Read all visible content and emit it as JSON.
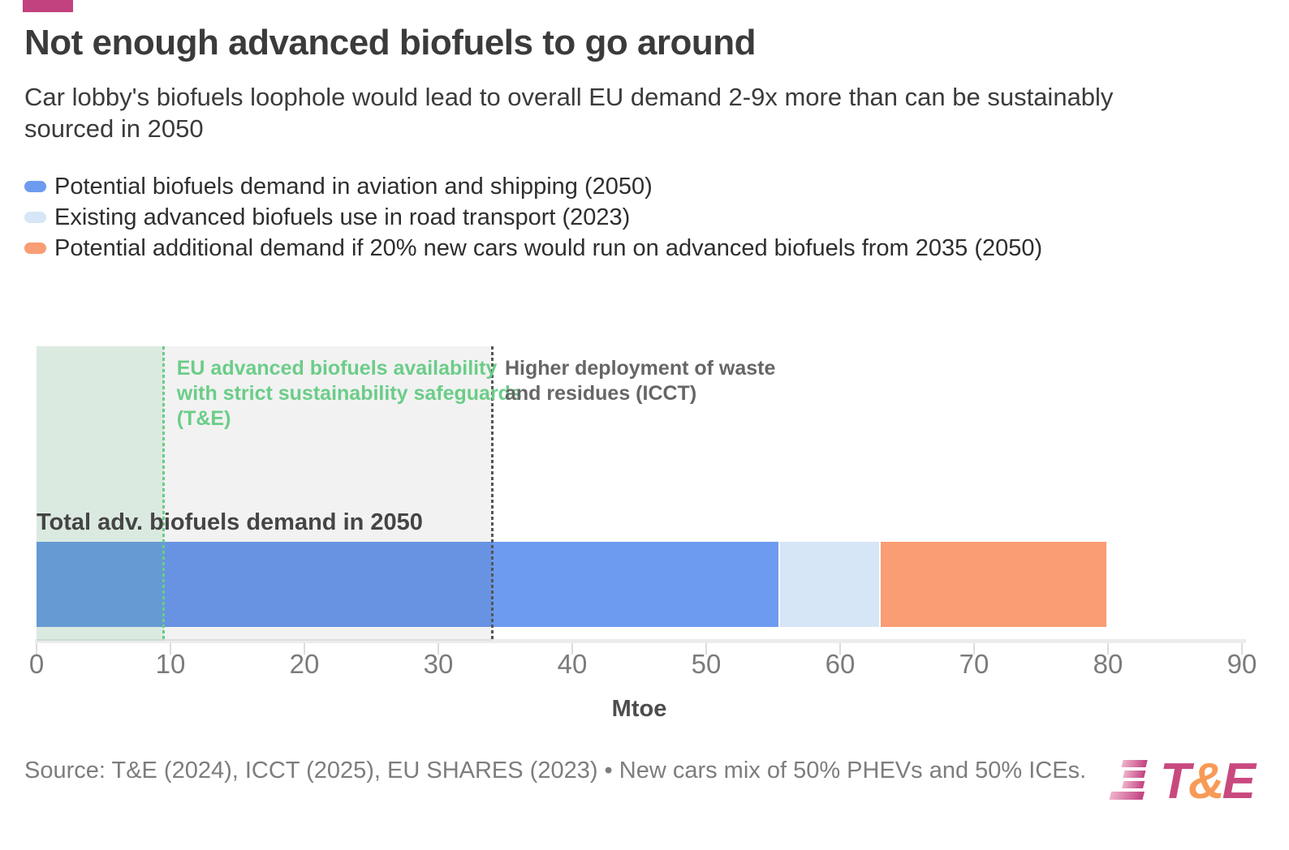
{
  "brand": {
    "accent_color": "#c2417f",
    "logo_pink": "#c9497f",
    "logo_orange": "#f89a57"
  },
  "header": {
    "title": "Not enough advanced biofuels to go around",
    "subtitle": "Car lobby's biofuels loophole would lead to overall EU demand 2-9x more than can be sustainably sourced in 2050"
  },
  "legend": {
    "items": [
      {
        "label": "Potential biofuels demand in aviation and shipping (2050)",
        "color": "#6d9bef"
      },
      {
        "label": "Existing advanced biofuels use in road transport (2023)",
        "color": "#d6e6f7"
      },
      {
        "label": "Potential additional demand if 20% new cars would run on advanced biofuels from 2035 (2050)",
        "color": "#f89d74"
      }
    ]
  },
  "chart_data": {
    "type": "bar",
    "orientation": "horizontal",
    "stacked": true,
    "bar_label": "Total adv. biofuels demand in 2050",
    "series": [
      {
        "name": "Potential biofuels demand in aviation and shipping (2050)",
        "value": 55.5,
        "color": "#6d9bef"
      },
      {
        "name": "Existing advanced biofuels use in road transport (2023)",
        "value": 7.5,
        "color": "#d6e6f7"
      },
      {
        "name": "Potential additional demand if 20% new cars would run on advanced biofuels from 2035 (2050)",
        "value": 17,
        "color": "#f89d74"
      }
    ],
    "total": 80,
    "reference_regions": [
      {
        "label": "EU advanced biofuels availability with strict sustainability safeguards (T&E)",
        "from": 0,
        "to": 9.5,
        "fill": "rgba(104,205,134,0.16)",
        "line_color": "#68cd86",
        "text_color": "#6bcd88"
      },
      {
        "label": "Higher deployment of waste and residues (ICCT)",
        "from": 0,
        "to": 34,
        "fill": "rgba(0,0,0,0.05)",
        "line_color": "#555555",
        "text_color": "#666666"
      }
    ],
    "xlabel": "Mtoe",
    "xlim": [
      0,
      90
    ],
    "xticks": [
      0,
      10,
      20,
      30,
      40,
      50,
      60,
      70,
      80,
      90
    ],
    "grid": false,
    "legend_position": "top-left"
  },
  "footer": {
    "source": "Source: T&E (2024), ICCT (2025), EU SHARES (2023) • New cars mix of 50% PHEVs and 50% ICEs.",
    "logo_text": {
      "t": "T",
      "amp": "&",
      "e": "E"
    }
  }
}
